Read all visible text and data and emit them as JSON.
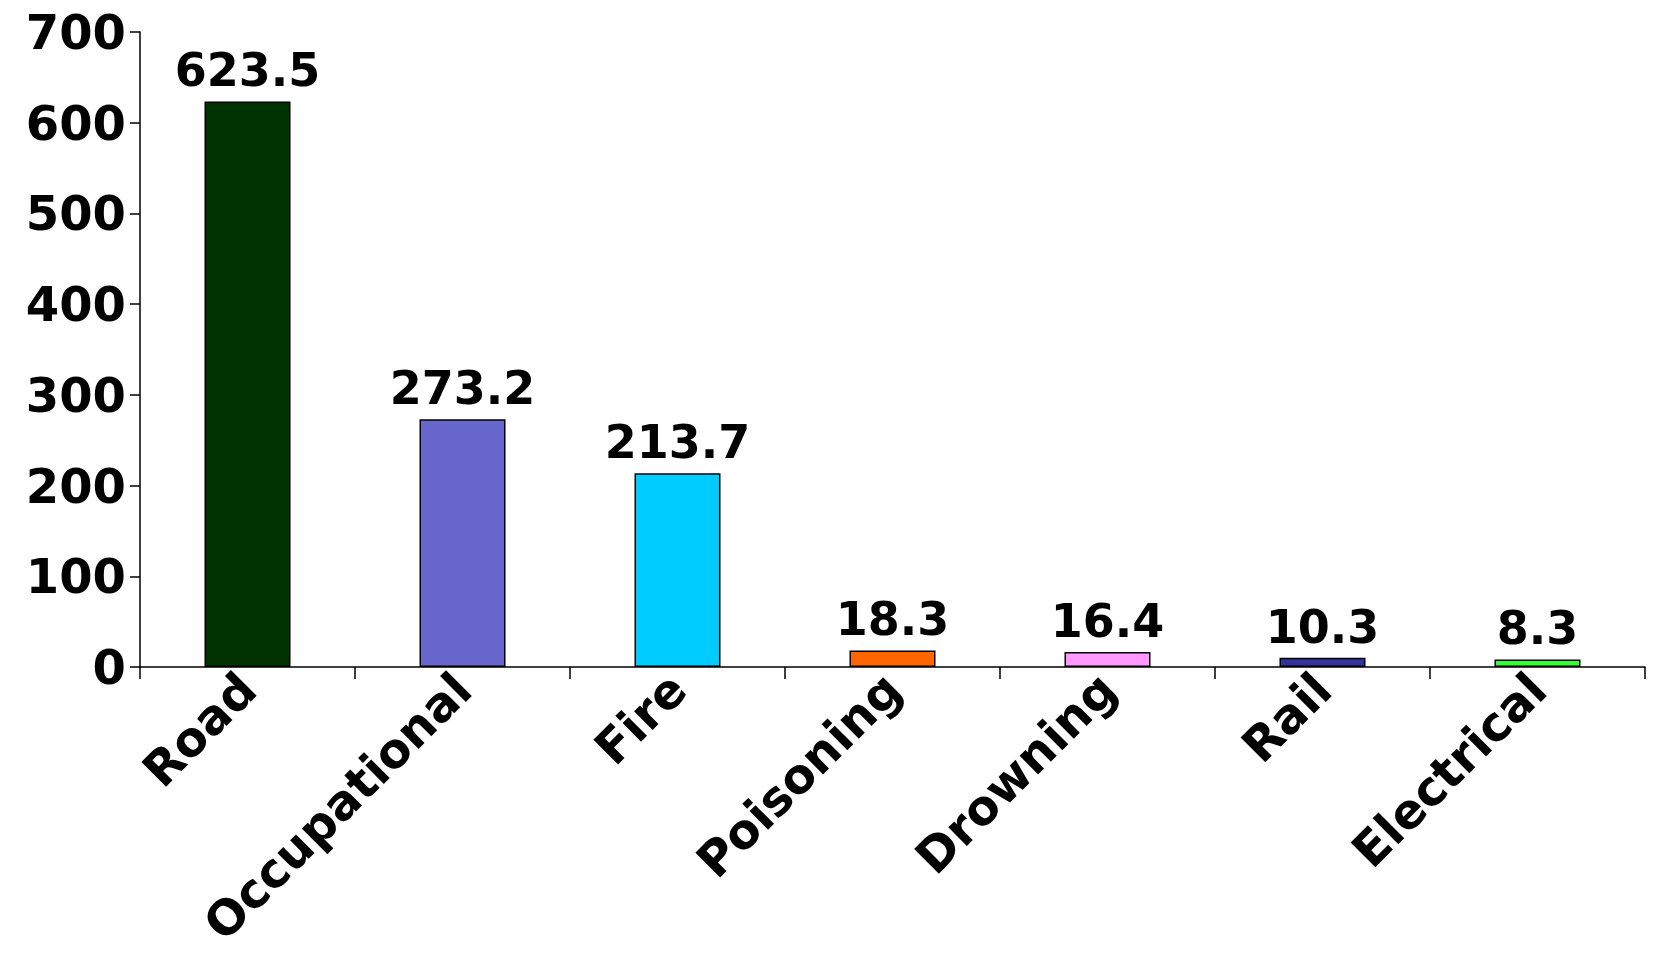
{
  "chart_data": {
    "type": "bar",
    "categories": [
      "Road",
      "Occupational",
      "Fire",
      "Poisoning",
      "Drowning",
      "Rail",
      "Electrical"
    ],
    "values": [
      623.5,
      273.2,
      213.7,
      18.3,
      16.4,
      10.3,
      8.3
    ],
    "colors": [
      "#003300",
      "#6666cc",
      "#00ccff",
      "#ff6600",
      "#ff99ff",
      "#333399",
      "#33ff33"
    ],
    "ylim": [
      0,
      700
    ],
    "yticks": [
      0,
      100,
      200,
      300,
      400,
      500,
      600,
      700
    ],
    "grid": false,
    "data_labels": true
  }
}
